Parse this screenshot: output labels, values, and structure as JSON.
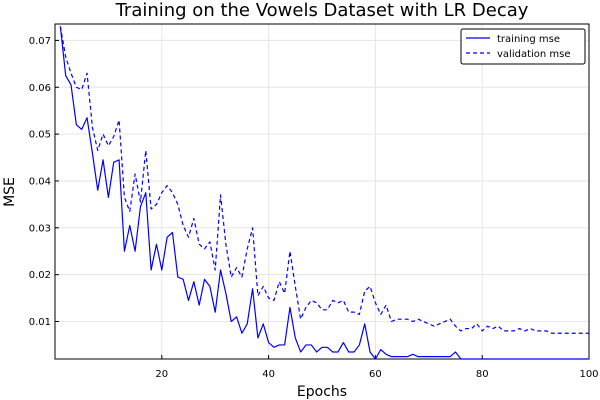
{
  "chart_data": {
    "type": "line",
    "title": "Training on the Vowels Dataset with LR Decay",
    "xlabel": "Epochs",
    "ylabel": "MSE",
    "xlim": [
      0,
      100
    ],
    "ylim": [
      0.002,
      0.0735
    ],
    "x_ticks": [
      20,
      40,
      60,
      80,
      100
    ],
    "y_ticks": [
      0.01,
      0.02,
      0.03,
      0.04,
      0.05,
      0.06,
      0.07
    ],
    "grid": true,
    "legend_position": "top-right",
    "series": [
      {
        "name": "training mse",
        "style": "solid",
        "color": "#0000ff",
        "x": [
          1,
          2,
          3,
          4,
          5,
          6,
          7,
          8,
          9,
          10,
          11,
          12,
          13,
          14,
          15,
          16,
          17,
          18,
          19,
          20,
          21,
          22,
          23,
          24,
          25,
          26,
          27,
          28,
          29,
          30,
          31,
          32,
          33,
          34,
          35,
          36,
          37,
          38,
          39,
          40,
          41,
          42,
          43,
          44,
          45,
          46,
          47,
          48,
          49,
          50,
          51,
          52,
          53,
          54,
          55,
          56,
          57,
          58,
          59,
          60,
          61,
          62,
          63,
          64,
          65,
          66,
          67,
          68,
          69,
          70,
          71,
          72,
          73,
          74,
          75,
          76,
          77,
          78,
          79,
          80,
          81,
          82,
          83,
          84,
          85,
          86,
          87,
          88,
          89,
          90,
          91,
          92,
          93,
          94,
          95,
          96,
          97,
          98,
          99,
          100
        ],
        "values": [
          0.073,
          0.0625,
          0.0605,
          0.052,
          0.051,
          0.0535,
          0.046,
          0.038,
          0.0445,
          0.0365,
          0.044,
          0.0445,
          0.025,
          0.0305,
          0.025,
          0.0345,
          0.0375,
          0.021,
          0.0265,
          0.021,
          0.028,
          0.029,
          0.0195,
          0.019,
          0.0145,
          0.0185,
          0.0135,
          0.019,
          0.0175,
          0.012,
          0.021,
          0.016,
          0.01,
          0.011,
          0.0075,
          0.0095,
          0.017,
          0.0065,
          0.0095,
          0.0055,
          0.0045,
          0.005,
          0.005,
          0.013,
          0.0065,
          0.0035,
          0.005,
          0.005,
          0.0035,
          0.0045,
          0.0045,
          0.0035,
          0.0035,
          0.0055,
          0.0035,
          0.0035,
          0.005,
          0.0095,
          0.0035,
          0.002,
          0.004,
          0.003,
          0.0025,
          0.0025,
          0.0025,
          0.0025,
          0.003,
          0.0025,
          0.0025,
          0.0025,
          0.0025,
          0.0025,
          0.0025,
          0.0025,
          0.0035,
          0.002,
          0.002,
          0.002,
          0.002,
          0.002,
          0.002,
          0.002,
          0.002,
          0.002,
          0.002,
          0.002,
          0.002,
          0.002,
          0.002,
          0.002,
          0.002,
          0.002,
          0.002,
          0.002,
          0.002,
          0.002,
          0.002,
          0.002,
          0.002,
          0.002
        ]
      },
      {
        "name": "validation mse",
        "style": "dashed",
        "color": "#0000ff",
        "x": [
          1,
          2,
          3,
          4,
          5,
          6,
          7,
          8,
          9,
          10,
          11,
          12,
          13,
          14,
          15,
          16,
          17,
          18,
          19,
          20,
          21,
          22,
          23,
          24,
          25,
          26,
          27,
          28,
          29,
          30,
          31,
          32,
          33,
          34,
          35,
          36,
          37,
          38,
          39,
          40,
          41,
          42,
          43,
          44,
          45,
          46,
          47,
          48,
          49,
          50,
          51,
          52,
          53,
          54,
          55,
          56,
          57,
          58,
          59,
          60,
          61,
          62,
          63,
          64,
          65,
          66,
          67,
          68,
          69,
          70,
          71,
          72,
          73,
          74,
          75,
          76,
          77,
          78,
          79,
          80,
          81,
          82,
          83,
          84,
          85,
          86,
          87,
          88,
          89,
          90,
          91,
          92,
          93,
          94,
          95,
          96,
          97,
          98,
          99,
          100
        ],
        "values": [
          0.073,
          0.0665,
          0.063,
          0.06,
          0.0595,
          0.063,
          0.0515,
          0.0465,
          0.05,
          0.0475,
          0.0495,
          0.053,
          0.0365,
          0.0335,
          0.0415,
          0.0355,
          0.0465,
          0.034,
          0.035,
          0.0375,
          0.039,
          0.0375,
          0.035,
          0.0305,
          0.028,
          0.032,
          0.0265,
          0.0255,
          0.027,
          0.021,
          0.037,
          0.0265,
          0.0195,
          0.0215,
          0.0195,
          0.0255,
          0.03,
          0.0155,
          0.0175,
          0.015,
          0.0145,
          0.0185,
          0.016,
          0.025,
          0.0175,
          0.0105,
          0.013,
          0.0145,
          0.014,
          0.0125,
          0.0125,
          0.0145,
          0.014,
          0.0145,
          0.012,
          0.012,
          0.0115,
          0.0165,
          0.0175,
          0.014,
          0.0115,
          0.0135,
          0.01,
          0.0105,
          0.0105,
          0.0105,
          0.01,
          0.0105,
          0.01,
          0.0095,
          0.009,
          0.0095,
          0.01,
          0.0105,
          0.009,
          0.008,
          0.0085,
          0.0085,
          0.0095,
          0.008,
          0.009,
          0.0085,
          0.009,
          0.008,
          0.008,
          0.008,
          0.0085,
          0.008,
          0.0085,
          0.008,
          0.008,
          0.008,
          0.0075,
          0.0075,
          0.0075,
          0.0075,
          0.0075,
          0.0075,
          0.0075,
          0.0075
        ]
      }
    ]
  }
}
